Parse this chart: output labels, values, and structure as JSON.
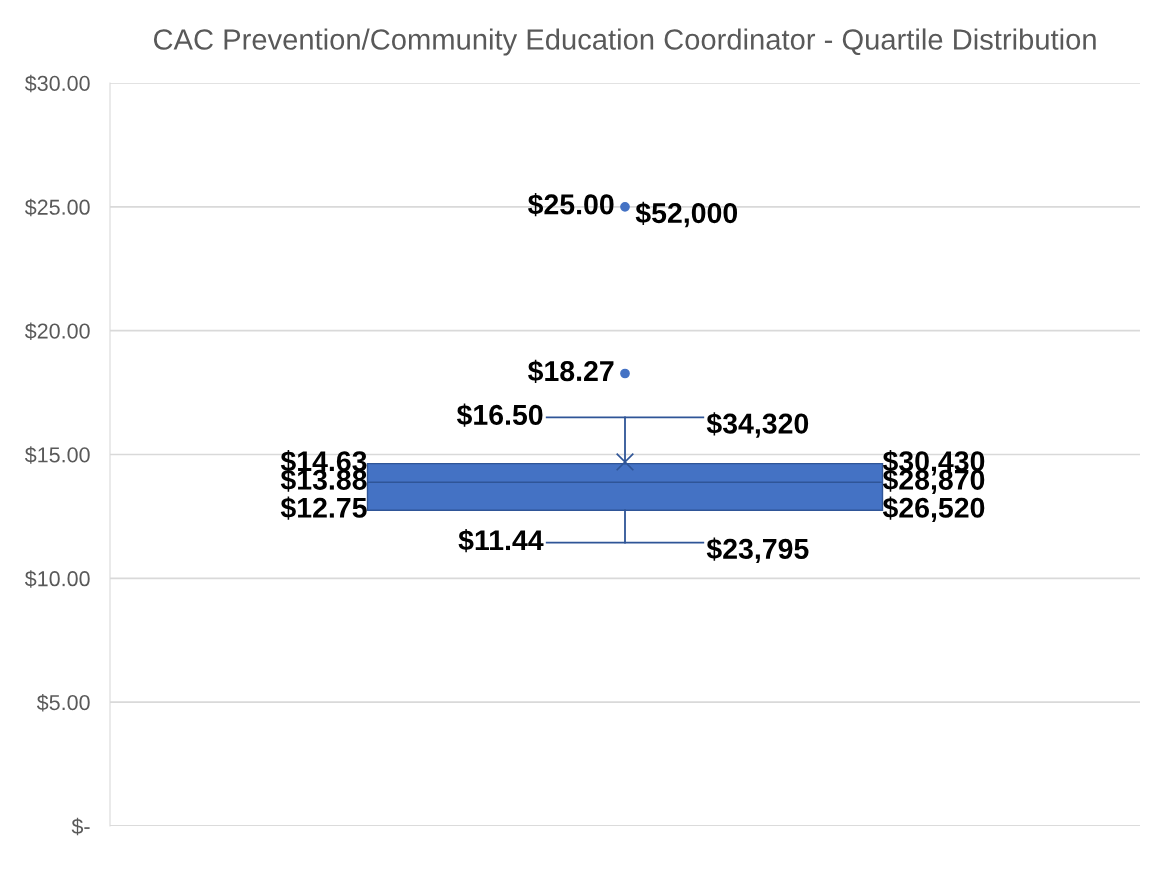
{
  "chart_data": {
    "type": "box",
    "title": "CAC Prevention/Community Education Coordinator - Quartile Distribution",
    "categories": [
      null
    ],
    "boxes": [
      {
        "low": 11.44,
        "q1": 12.75,
        "median": 13.88,
        "q3": 14.63,
        "high": 16.5,
        "mean": 14.7,
        "outliers": [
          18.27,
          25.0
        ]
      }
    ],
    "color": "#4472c4",
    "ylim": [
      0,
      30
    ],
    "yticks": [
      {
        "value": 0,
        "label": "$-"
      },
      {
        "value": 5,
        "label": "$5.00"
      },
      {
        "value": 10,
        "label": "$10.00"
      },
      {
        "value": 15,
        "label": "$15.00"
      },
      {
        "value": 20,
        "label": "$20.00"
      },
      {
        "value": 25,
        "label": "$25.00"
      },
      {
        "value": 30,
        "label": "$30.00"
      }
    ],
    "grid": "y",
    "annotations": [
      "$25.00",
      "$52,000",
      "$18.27",
      "$16.50",
      "$34,320",
      "$14.63",
      "$30,430",
      "$13.88",
      "$28,870",
      "$12.75",
      "$26,520",
      "$11.44",
      "$23,795"
    ]
  }
}
